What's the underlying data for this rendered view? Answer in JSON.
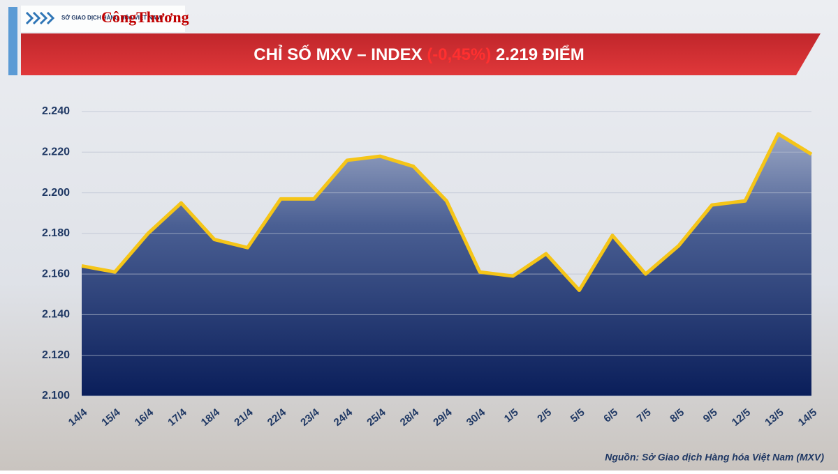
{
  "logos": {
    "exchange": "SỞ GIAO DỊCH HÀNG HÓA VIỆT NAM",
    "paper": "CôngThương"
  },
  "chart_data": {
    "type": "area",
    "title": "CHỈ SỐ MXV – INDEX",
    "title_change": "(-0,45%)",
    "title_value": "2.219 ĐIỂM",
    "source": "Nguồn: Sở Giao dịch Hàng hóa Việt Nam (MXV)",
    "categories": [
      "14/4",
      "15/4",
      "16/4",
      "17/4",
      "18/4",
      "21/4",
      "22/4",
      "23/4",
      "24/4",
      "25/4",
      "28/4",
      "29/4",
      "30/4",
      "1/5",
      "2/5",
      "5/5",
      "6/5",
      "7/5",
      "8/5",
      "9/5",
      "12/5",
      "13/5",
      "14/5"
    ],
    "values": [
      2164,
      2161,
      2180,
      2195,
      2177,
      2173,
      2197,
      2197,
      2216,
      2218,
      2213,
      2196,
      2161,
      2159,
      2170,
      2152,
      2179,
      2160,
      2174,
      2194,
      2196,
      2229,
      2219
    ],
    "color": "#f5c518",
    "ylim": [
      2100,
      2240
    ],
    "yticks": [
      {
        "value": 2100,
        "label": "2.100"
      },
      {
        "value": 2120,
        "label": "2.120"
      },
      {
        "value": 2140,
        "label": "2.140"
      },
      {
        "value": 2160,
        "label": "2.160"
      },
      {
        "value": 2180,
        "label": "2.180"
      },
      {
        "value": 2200,
        "label": "2.200"
      },
      {
        "value": 2220,
        "label": "2.220"
      },
      {
        "value": 2240,
        "label": "2.240"
      }
    ],
    "grid": true
  }
}
